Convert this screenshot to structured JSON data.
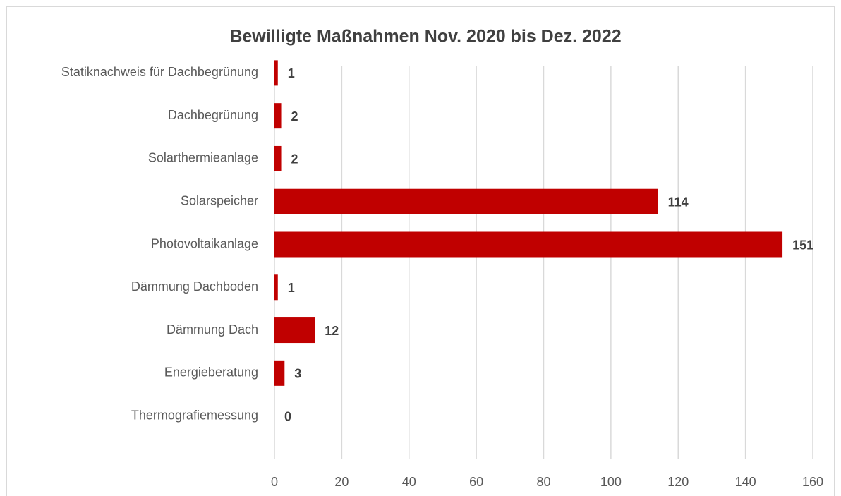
{
  "chart_data": {
    "type": "bar",
    "orientation": "horizontal",
    "title": "Bewilligte Maßnahmen Nov. 2020 bis Dez. 2022",
    "categories": [
      "Statiknachweis für Dachbegrünung",
      "Dachbegrünung",
      "Solarthermieanlage",
      "Solarspeicher",
      "Photovoltaikanlage",
      "Dämmung Dachboden",
      "Dämmung Dach",
      "Energieberatung",
      "Thermografiemessung"
    ],
    "values": [
      1,
      2,
      2,
      114,
      151,
      1,
      12,
      3,
      0
    ],
    "color": "#c00000",
    "xlim": [
      0,
      160
    ],
    "xticks": [
      0,
      20,
      40,
      60,
      80,
      100,
      120,
      140,
      160
    ],
    "grid": true
  }
}
